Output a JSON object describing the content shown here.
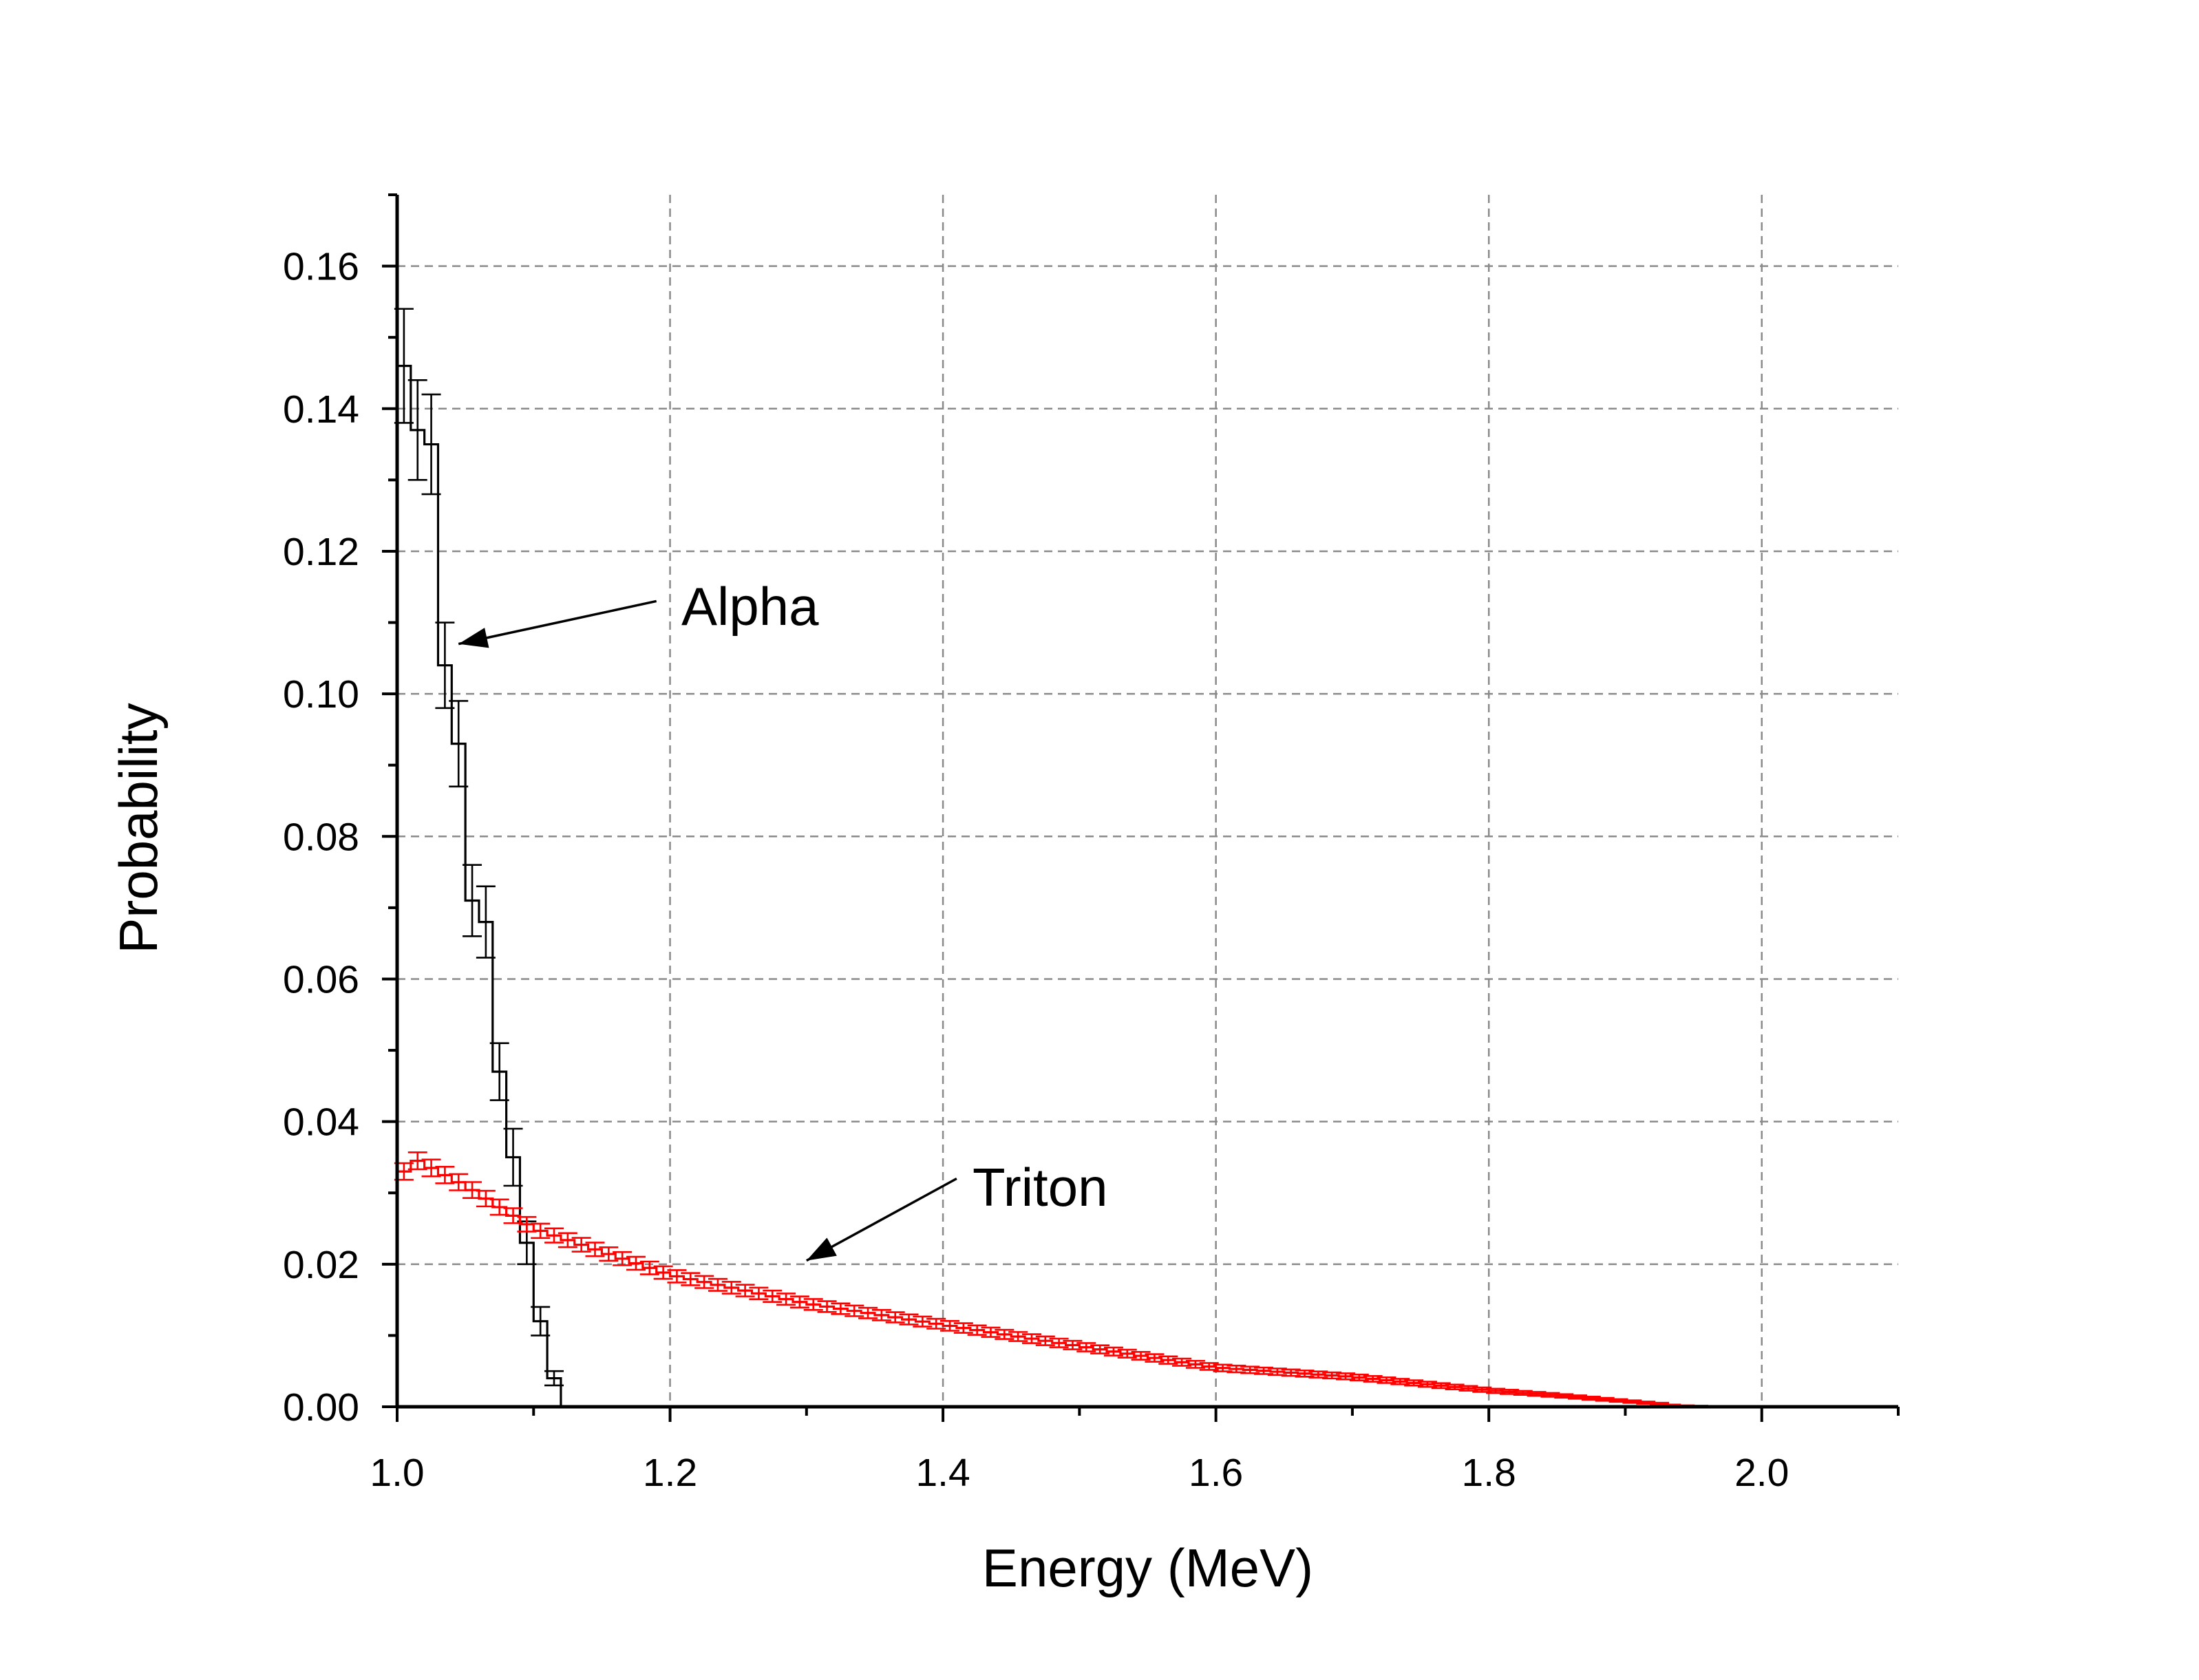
{
  "chart_data": {
    "type": "line",
    "title": "",
    "xlabel": "Energy (MeV)",
    "ylabel": "Probability",
    "xlim": [
      1.0,
      2.1
    ],
    "ylim": [
      0.0,
      0.17
    ],
    "xticks": [
      1.0,
      1.2,
      1.4,
      1.6,
      1.8,
      2.0
    ],
    "xtick_labels": [
      "1.0",
      "1.2",
      "1.4",
      "1.6",
      "1.8",
      "2.0"
    ],
    "yticks": [
      0.0,
      0.02,
      0.04,
      0.06,
      0.08,
      0.1,
      0.12,
      0.14,
      0.16
    ],
    "ytick_labels": [
      "0.00",
      "0.02",
      "0.04",
      "0.06",
      "0.08",
      "0.10",
      "0.12",
      "0.14",
      "0.16"
    ],
    "grid": true,
    "legend": "none",
    "step": "histogram",
    "annotations": [
      {
        "text": "Alpha",
        "series": "alpha",
        "arrow_from": [
          1.19,
          0.113
        ],
        "arrow_to": [
          1.045,
          0.107
        ]
      },
      {
        "text": "Triton",
        "series": "triton",
        "arrow_from": [
          1.41,
          0.032
        ],
        "arrow_to": [
          1.3,
          0.0205
        ]
      }
    ],
    "series": [
      {
        "id": "alpha",
        "color": "#000000",
        "bin_width": 0.01,
        "x_start": 1.0,
        "values": [
          0.146,
          0.137,
          0.135,
          0.104,
          0.093,
          0.071,
          0.068,
          0.047,
          0.035,
          0.023,
          0.012,
          0.004,
          0.0
        ],
        "errors": [
          0.008,
          0.007,
          0.007,
          0.006,
          0.006,
          0.005,
          0.005,
          0.004,
          0.004,
          0.003,
          0.002,
          0.001,
          0.0
        ]
      },
      {
        "id": "triton",
        "color": "#ff0000",
        "bin_width": 0.01,
        "x_start": 1.0,
        "knots_x": [
          1.0,
          1.01,
          1.05,
          1.1,
          1.2,
          1.3,
          1.4,
          1.5,
          1.6,
          1.7,
          1.8,
          1.85,
          1.9,
          1.94,
          1.98
        ],
        "knots_y": [
          0.031,
          0.035,
          0.031,
          0.025,
          0.0185,
          0.0145,
          0.0115,
          0.0085,
          0.0055,
          0.0042,
          0.0023,
          0.0016,
          0.0008,
          0.0002,
          0.0
        ],
        "error": 0.0012
      }
    ]
  }
}
